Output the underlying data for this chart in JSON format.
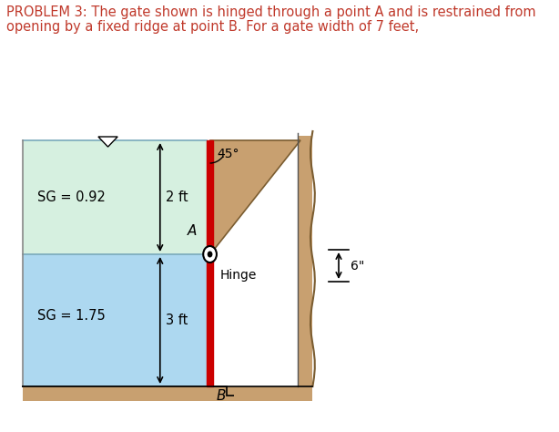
{
  "title_line1": "PROBLEM 3: The gate shown is hinged through a point A and is restrained from",
  "title_line2": "opening by a fixed ridge at point B. For a gate width of 7 feet,",
  "title_color": "#c0392b",
  "title_fontsize": 10.5,
  "bg_color": "#ffffff",
  "fluid_top_color": "#d6f0e0",
  "fluid_bottom_color": "#add8f0",
  "gate_color": "#cc0000",
  "wall_color": "#c8a070",
  "ground_color": "#c8a070",
  "sg1": "SG = 0.92",
  "sg2": "SG = 1.75",
  "dim1": "2 ft",
  "dim2": "3 ft",
  "label_A": "A",
  "label_B": "B",
  "label_hinge": "Hinge",
  "label_angle": "45°",
  "label_6in": "6\""
}
